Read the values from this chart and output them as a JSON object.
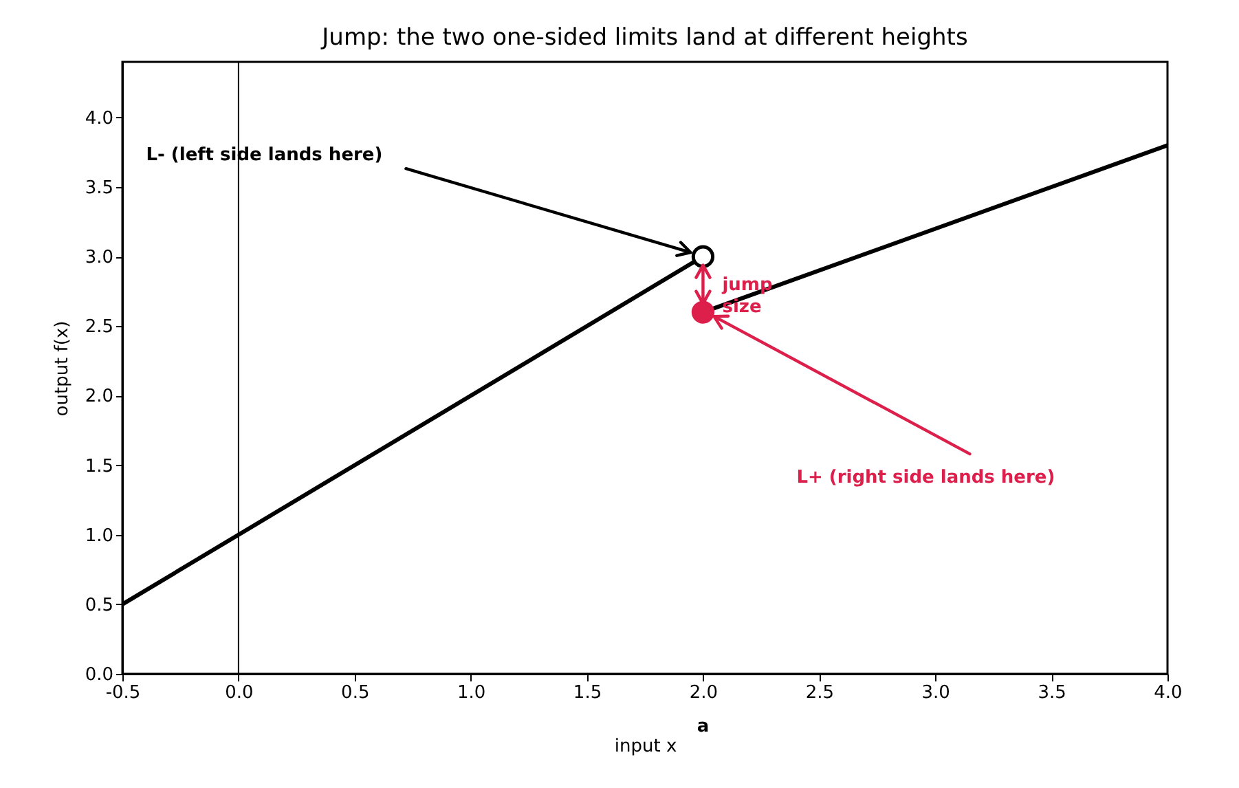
{
  "chart_data": {
    "type": "line",
    "title": "Jump: the two one-sided limits land at different heights",
    "xlabel": "input  x",
    "ylabel": "output  f(x)",
    "xlim": [
      -0.5,
      4.0
    ],
    "ylim": [
      0,
      4.4
    ],
    "xticks": [
      -0.5,
      {
        "value": 0,
        "label": "0.0"
      },
      0.5,
      {
        "value": 1,
        "label": "1.0"
      },
      1.5,
      {
        "value": 2,
        "label": "2.0"
      },
      2.5,
      {
        "value": 3,
        "label": "3.0"
      },
      3.5,
      {
        "value": 4,
        "label": "4.0"
      }
    ],
    "yticks": [
      {
        "value": 0,
        "label": "0.0"
      },
      0.5,
      {
        "value": 1,
        "label": "1.0"
      },
      1.5,
      {
        "value": 2,
        "label": "2.0"
      },
      2.5,
      {
        "value": 3,
        "label": "3.0"
      },
      3.5,
      {
        "value": 4,
        "label": "4.0"
      }
    ],
    "series": [
      {
        "color": "#000000",
        "x": [
          -0.5,
          2
        ],
        "values": [
          0.5,
          3
        ]
      },
      {
        "color": "#000000",
        "x": [
          2,
          4
        ],
        "values": [
          2.6,
          3.8
        ]
      },
      {
        "type": "scatter",
        "color": "#000000",
        "x": [
          2
        ],
        "values": [
          3
        ]
      },
      {
        "type": "scatter",
        "color": "#dc1f4b",
        "x": [
          2
        ],
        "values": [
          2.6
        ]
      }
    ],
    "ref_lines": [
      {
        "axis": "x",
        "value": 0,
        "color": "#000000"
      }
    ],
    "annotations": [
      "L- (left side lands here)",
      {
        "text": "jump\nsize",
        "x": 2,
        "y": 2.8
      },
      "L+ (right side lands here)",
      "a"
    ],
    "line_style": "solid"
  }
}
